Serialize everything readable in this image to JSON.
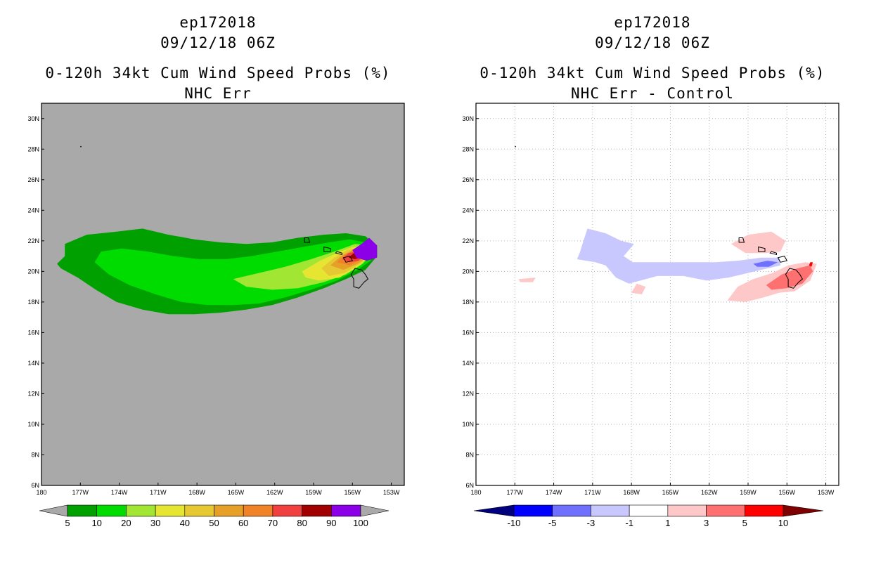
{
  "chart_data": [
    {
      "type": "heatmap",
      "name": "left",
      "title_lines": [
        "ep172018",
        "09/12/18 06Z",
        "0-120h 34kt Cum Wind Speed Probs (%)",
        "NHC Err"
      ],
      "background": "#a9a9a9",
      "grid": false,
      "lon_range": [
        180,
        152
      ],
      "lat_range": [
        6,
        31
      ],
      "x_ticks": [
        "180",
        "177W",
        "174W",
        "171W",
        "168W",
        "165W",
        "162W",
        "159W",
        "156W",
        "153W"
      ],
      "y_ticks": [
        "6N",
        "8N",
        "10N",
        "12N",
        "14N",
        "16N",
        "18N",
        "20N",
        "22N",
        "24N",
        "26N",
        "28N",
        "30N"
      ],
      "colorbar": {
        "labels": [
          "5",
          "10",
          "20",
          "30",
          "40",
          "50",
          "60",
          "70",
          "80",
          "90",
          "100"
        ],
        "colors": [
          "#a9a9a9",
          "#00a000",
          "#00dc00",
          "#a0e632",
          "#e6e632",
          "#e6c832",
          "#e6a028",
          "#f08228",
          "#f04040",
          "#a00000",
          "#8b00e6",
          "#a9a9a9"
        ]
      },
      "contours": [
        {
          "level": 5,
          "color": "#00a000",
          "lonlat": [
            [
              -178.8,
              20.5
            ],
            [
              -178.2,
              21.0
            ],
            [
              -178.2,
              21.8
            ],
            [
              -176.5,
              22.4
            ],
            [
              -174.2,
              22.6
            ],
            [
              -172.2,
              22.8
            ],
            [
              -170.2,
              22.4
            ],
            [
              -168.2,
              22.1
            ],
            [
              -166.2,
              21.9
            ],
            [
              -164.2,
              21.8
            ],
            [
              -162.2,
              21.9
            ],
            [
              -160.2,
              22.2
            ],
            [
              -158.2,
              22.4
            ],
            [
              -156.5,
              22.5
            ],
            [
              -155.0,
              22.3
            ],
            [
              -154.1,
              21.7
            ],
            [
              -154.1,
              21.0
            ],
            [
              -155.0,
              20.1
            ],
            [
              -156.5,
              19.5
            ],
            [
              -158.2,
              18.9
            ],
            [
              -160.2,
              18.3
            ],
            [
              -162.2,
              17.8
            ],
            [
              -164.2,
              17.5
            ],
            [
              -166.2,
              17.3
            ],
            [
              -168.2,
              17.2
            ],
            [
              -170.2,
              17.2
            ],
            [
              -172.2,
              17.5
            ],
            [
              -174.2,
              18.0
            ],
            [
              -175.8,
              18.8
            ],
            [
              -177.2,
              19.6
            ],
            [
              -178.5,
              20.2
            ]
          ]
        },
        {
          "level": 10,
          "color": "#00dc00",
          "lonlat": [
            [
              -175.9,
              20.6
            ],
            [
              -175.4,
              21.3
            ],
            [
              -173.8,
              21.5
            ],
            [
              -171.8,
              21.3
            ],
            [
              -169.8,
              21.0
            ],
            [
              -167.8,
              20.8
            ],
            [
              -165.8,
              20.8
            ],
            [
              -163.8,
              21.0
            ],
            [
              -161.8,
              21.3
            ],
            [
              -159.8,
              21.6
            ],
            [
              -157.8,
              21.9
            ],
            [
              -156.2,
              22.1
            ],
            [
              -155.0,
              21.9
            ],
            [
              -154.4,
              21.4
            ],
            [
              -154.6,
              20.7
            ],
            [
              -155.6,
              20.1
            ],
            [
              -157.2,
              19.4
            ],
            [
              -159.2,
              18.8
            ],
            [
              -161.2,
              18.3
            ],
            [
              -163.2,
              17.9
            ],
            [
              -165.2,
              17.8
            ],
            [
              -167.2,
              17.8
            ],
            [
              -169.2,
              18.0
            ],
            [
              -171.2,
              18.5
            ],
            [
              -173.2,
              19.1
            ],
            [
              -174.8,
              19.8
            ]
          ]
        },
        {
          "level": 20,
          "color": "#a0e632",
          "lonlat": [
            [
              -165.2,
              19.5
            ],
            [
              -163.2,
              19.9
            ],
            [
              -161.2,
              20.3
            ],
            [
              -159.2,
              20.8
            ],
            [
              -157.4,
              21.3
            ],
            [
              -155.8,
              21.8
            ],
            [
              -154.8,
              21.7
            ],
            [
              -154.5,
              21.2
            ],
            [
              -155.2,
              20.5
            ],
            [
              -156.5,
              19.8
            ],
            [
              -158.2,
              19.3
            ],
            [
              -160.2,
              18.9
            ],
            [
              -162.2,
              18.8
            ],
            [
              -164.2,
              19.0
            ]
          ]
        },
        {
          "level": 30,
          "color": "#e6e632",
          "lonlat": [
            [
              -159.9,
              20.0
            ],
            [
              -158.5,
              20.7
            ],
            [
              -157.2,
              21.2
            ],
            [
              -156.0,
              21.6
            ],
            [
              -154.8,
              21.6
            ],
            [
              -154.6,
              21.0
            ],
            [
              -155.6,
              20.3
            ],
            [
              -157.0,
              19.6
            ],
            [
              -158.6,
              19.4
            ],
            [
              -159.6,
              19.6
            ]
          ]
        },
        {
          "level": 40,
          "color": "#e6c832",
          "lonlat": [
            [
              -158.4,
              20.2
            ],
            [
              -157.4,
              20.9
            ],
            [
              -156.4,
              21.4
            ],
            [
              -155.2,
              21.6
            ],
            [
              -154.7,
              21.1
            ],
            [
              -155.4,
              20.5
            ],
            [
              -156.6,
              19.9
            ],
            [
              -157.8,
              19.7
            ]
          ]
        },
        {
          "level": 50,
          "color": "#e6a028",
          "lonlat": [
            [
              -157.7,
              20.4
            ],
            [
              -156.9,
              21.0
            ],
            [
              -156.0,
              21.4
            ],
            [
              -155.0,
              21.5
            ],
            [
              -154.8,
              21.0
            ],
            [
              -155.6,
              20.5
            ],
            [
              -156.7,
              20.1
            ]
          ]
        },
        {
          "level": 60,
          "color": "#f08228",
          "lonlat": [
            [
              -157.2,
              20.6
            ],
            [
              -156.6,
              21.1
            ],
            [
              -155.8,
              21.4
            ],
            [
              -155.1,
              21.3
            ],
            [
              -155.3,
              20.8
            ],
            [
              -156.2,
              20.4
            ]
          ]
        },
        {
          "level": 70,
          "color": "#f04040",
          "lonlat": [
            [
              -156.8,
              20.8
            ],
            [
              -156.3,
              21.2
            ],
            [
              -155.6,
              21.3
            ],
            [
              -155.2,
              21.1
            ],
            [
              -155.5,
              20.7
            ],
            [
              -156.2,
              20.6
            ]
          ]
        },
        {
          "level": 80,
          "color": "#a00000",
          "lonlat": [
            [
              -156.3,
              20.9
            ],
            [
              -155.9,
              21.2
            ],
            [
              -155.4,
              21.2
            ],
            [
              -155.4,
              20.9
            ],
            [
              -155.8,
              20.8
            ]
          ]
        },
        {
          "level": 90,
          "color": "#8b00e6",
          "lonlat": [
            [
              -156.0,
              21.4
            ],
            [
              -155.3,
              21.8
            ],
            [
              -154.7,
              22.2
            ],
            [
              -154.1,
              21.7
            ],
            [
              -154.1,
              20.9
            ],
            [
              -154.9,
              20.7
            ],
            [
              -155.7,
              20.9
            ]
          ]
        }
      ]
    },
    {
      "type": "heatmap",
      "name": "right",
      "title_lines": [
        "ep172018",
        "09/12/18 06Z",
        "0-120h 34kt Cum Wind Speed Probs (%)",
        "NHC Err - Control"
      ],
      "background": "#ffffff",
      "grid": true,
      "lon_range": [
        180,
        152
      ],
      "lat_range": [
        6,
        31
      ],
      "x_ticks": [
        "180",
        "177W",
        "174W",
        "171W",
        "168W",
        "165W",
        "162W",
        "159W",
        "156W",
        "153W"
      ],
      "y_ticks": [
        "6N",
        "8N",
        "10N",
        "12N",
        "14N",
        "16N",
        "18N",
        "20N",
        "22N",
        "24N",
        "26N",
        "28N",
        "30N"
      ],
      "colorbar": {
        "labels": [
          "-10",
          "-5",
          "-3",
          "-1",
          "1",
          "3",
          "5",
          "10"
        ],
        "colors": [
          "#00007f",
          "#0000ff",
          "#7070ff",
          "#c8c8ff",
          "#ffffff",
          "#ffc8c8",
          "#ff7070",
          "#ff0000",
          "#7f0000"
        ]
      },
      "contours": [
        {
          "level": -1,
          "color": "#c8c8ff",
          "lonlat": [
            [
              -172.0,
              21.2
            ],
            [
              -171.4,
              22.8
            ],
            [
              -170.0,
              22.5
            ],
            [
              -168.8,
              22.0
            ],
            [
              -167.8,
              21.8
            ],
            [
              -168.6,
              21.0
            ],
            [
              -167.9,
              20.6
            ],
            [
              -165.8,
              20.6
            ],
            [
              -163.5,
              20.6
            ],
            [
              -161.5,
              20.6
            ],
            [
              -159.8,
              20.7
            ],
            [
              -158.0,
              20.9
            ],
            [
              -156.6,
              20.9
            ],
            [
              -156.5,
              20.4
            ],
            [
              -158.5,
              20.0
            ],
            [
              -160.5,
              19.6
            ],
            [
              -162.2,
              19.4
            ],
            [
              -164.0,
              19.7
            ],
            [
              -166.0,
              19.7
            ],
            [
              -168.2,
              19.2
            ],
            [
              -169.2,
              19.6
            ],
            [
              -170.0,
              20.4
            ],
            [
              -170.8,
              20.6
            ],
            [
              -172.2,
              20.8
            ]
          ]
        },
        {
          "level": -3,
          "color": "#7070ff",
          "lonlat": [
            [
              -158.6,
              20.5
            ],
            [
              -157.5,
              20.7
            ],
            [
              -156.7,
              20.6
            ],
            [
              -157.4,
              20.3
            ],
            [
              -158.3,
              20.3
            ]
          ]
        },
        {
          "level": 1,
          "color": "#ffc8c8",
          "lonlat": [
            [
              -160.6,
              18.1
            ],
            [
              -159.8,
              19.0
            ],
            [
              -158.6,
              19.5
            ],
            [
              -157.1,
              19.9
            ],
            [
              -155.9,
              20.4
            ],
            [
              -154.6,
              20.6
            ],
            [
              -153.7,
              20.5
            ],
            [
              -154.2,
              19.4
            ],
            [
              -155.4,
              18.7
            ],
            [
              -156.6,
              18.6
            ],
            [
              -157.8,
              18.3
            ],
            [
              -159.2,
              18.0
            ]
          ]
        },
        {
          "level": 1,
          "color": "#ffc8c8",
          "lonlat": [
            [
              -160.3,
              21.8
            ],
            [
              -159.0,
              22.4
            ],
            [
              -157.2,
              22.6
            ],
            [
              -156.1,
              22.0
            ],
            [
              -156.5,
              21.3
            ],
            [
              -157.6,
              21.2
            ],
            [
              -159.2,
              21.2
            ]
          ]
        },
        {
          "level": 1,
          "color": "#ffc8c8",
          "lonlat": [
            [
              -167.6,
              19.2
            ],
            [
              -166.9,
              19.0
            ],
            [
              -167.2,
              18.5
            ],
            [
              -168.0,
              18.6
            ]
          ]
        },
        {
          "level": 1,
          "color": "#ffc8c8",
          "lonlat": [
            [
              -176.7,
              19.5
            ],
            [
              -175.4,
              19.6
            ],
            [
              -175.6,
              19.3
            ],
            [
              -176.6,
              19.3
            ]
          ]
        },
        {
          "level": 3,
          "color": "#ff7070",
          "lonlat": [
            [
              -157.6,
              19.1
            ],
            [
              -156.4,
              19.8
            ],
            [
              -155.2,
              20.2
            ],
            [
              -154.2,
              20.4
            ],
            [
              -154.0,
              20.0
            ],
            [
              -154.8,
              19.2
            ],
            [
              -156.0,
              18.9
            ],
            [
              -157.2,
              18.8
            ]
          ]
        },
        {
          "level": 5,
          "color": "#ff0000",
          "lonlat": [
            [
              -154.3,
              20.4
            ],
            [
              -154.2,
              20.6
            ],
            [
              -154.0,
              20.6
            ],
            [
              -154.1,
              20.3
            ]
          ]
        }
      ]
    }
  ],
  "islands_lonlat": [
    [
      [
        -155.9,
        19.0
      ],
      [
        -155.5,
        18.9
      ],
      [
        -155.1,
        19.3
      ],
      [
        -154.8,
        19.5
      ],
      [
        -155.0,
        19.8
      ],
      [
        -155.3,
        20.1
      ],
      [
        -155.8,
        20.2
      ],
      [
        -156.1,
        19.8
      ],
      [
        -155.9,
        19.5
      ]
    ],
    [
      [
        -156.7,
        20.9
      ],
      [
        -156.5,
        20.6
      ],
      [
        -156.0,
        20.7
      ],
      [
        -156.2,
        21.0
      ]
    ],
    [
      [
        -157.3,
        21.2
      ],
      [
        -156.8,
        21.1
      ],
      [
        -156.8,
        21.2
      ],
      [
        -157.2,
        21.3
      ]
    ],
    [
      [
        -158.2,
        21.6
      ],
      [
        -157.7,
        21.5
      ],
      [
        -157.7,
        21.3
      ],
      [
        -158.2,
        21.3
      ]
    ],
    [
      [
        -159.7,
        22.2
      ],
      [
        -159.4,
        22.2
      ],
      [
        -159.3,
        21.9
      ],
      [
        -159.7,
        21.9
      ]
    ]
  ]
}
